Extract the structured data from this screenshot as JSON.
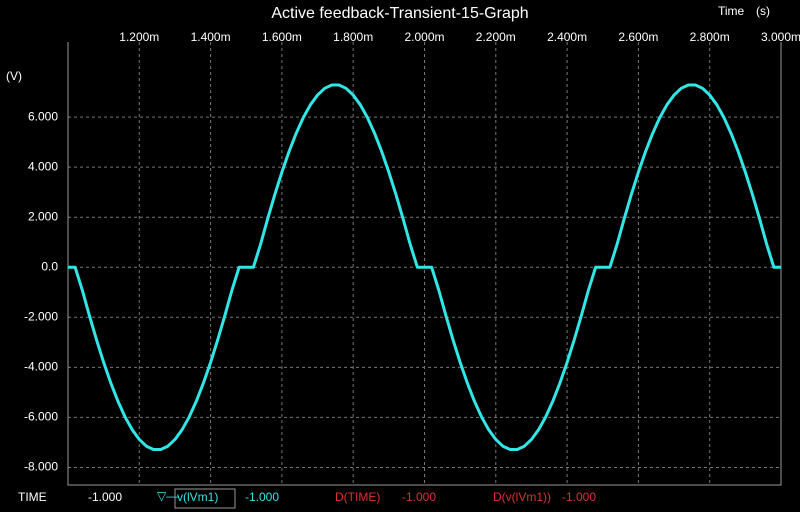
{
  "chart_data": {
    "type": "line",
    "title": "Active feedback-Transient-15-Graph",
    "xlabel": "Time",
    "xunit": "(s)",
    "ylabel": "(V)",
    "xlim": [
      0.001,
      0.003
    ],
    "ylim": [
      -8.7,
      9
    ],
    "xticks": [
      {
        "value": 0.0012,
        "label": "1.200m"
      },
      {
        "value": 0.0014,
        "label": "1.400m"
      },
      {
        "value": 0.0016,
        "label": "1.600m"
      },
      {
        "value": 0.0018,
        "label": "1.800m"
      },
      {
        "value": 0.002,
        "label": "2.000m"
      },
      {
        "value": 0.0022,
        "label": "2.200m"
      },
      {
        "value": 0.0024,
        "label": "2.400m"
      },
      {
        "value": 0.0026,
        "label": "2.600m"
      },
      {
        "value": 0.0028,
        "label": "2.800m"
      },
      {
        "value": 0.003,
        "label": "3.000m"
      }
    ],
    "yticks": [
      {
        "value": 6,
        "label": "6.000"
      },
      {
        "value": 4,
        "label": "4.000"
      },
      {
        "value": 2,
        "label": "2.000"
      },
      {
        "value": 0,
        "label": "0.0"
      },
      {
        "value": -2,
        "label": "-2.000"
      },
      {
        "value": -4,
        "label": "-4.000"
      },
      {
        "value": -6,
        "label": "-6.000"
      },
      {
        "value": -8,
        "label": "-8.000"
      }
    ],
    "grid": true,
    "x": [
      0.001,
      0.00102,
      0.00104,
      0.00106,
      0.00108,
      0.0011,
      0.00112,
      0.00114,
      0.00116,
      0.00118,
      0.0012,
      0.00122,
      0.00124,
      0.00126,
      0.00128,
      0.0013,
      0.00132,
      0.00134,
      0.00136,
      0.00138,
      0.0014,
      0.00142,
      0.00144,
      0.00146,
      0.00148,
      0.0015,
      0.00152,
      0.00154,
      0.00156,
      0.00158,
      0.0016,
      0.00162,
      0.00164,
      0.00166,
      0.00168,
      0.0017,
      0.00172,
      0.00174,
      0.00176,
      0.00178,
      0.0018,
      0.00182,
      0.00184,
      0.00186,
      0.00188,
      0.0019,
      0.00192,
      0.00194,
      0.00196,
      0.00198,
      0.002,
      0.00202,
      0.00204,
      0.00206,
      0.00208,
      0.0021,
      0.00212,
      0.00214,
      0.00216,
      0.00218,
      0.0022,
      0.00222,
      0.00224,
      0.00226,
      0.00228,
      0.0023,
      0.00232,
      0.00234,
      0.00236,
      0.00238,
      0.0024,
      0.00242,
      0.00244,
      0.00246,
      0.00248,
      0.0025,
      0.00252,
      0.00254,
      0.00256,
      0.00258,
      0.0026,
      0.00262,
      0.00264,
      0.00266,
      0.00268,
      0.0027,
      0.00272,
      0.00274,
      0.00276,
      0.00278,
      0.0028,
      0.00282,
      0.00284,
      0.00286,
      0.00288,
      0.0029,
      0.00292,
      0.00294,
      0.00296,
      0.00298,
      0.003
    ],
    "series": [
      {
        "name": "v(lVm1)",
        "color": "#33e6e6",
        "values": [
          0,
          0,
          -0.91,
          -1.93,
          -2.9,
          -3.8,
          -4.62,
          -5.35,
          -5.98,
          -6.49,
          -6.88,
          -7.15,
          -7.28,
          -7.28,
          -7.15,
          -6.88,
          -6.49,
          -5.98,
          -5.35,
          -4.62,
          -3.8,
          -2.9,
          -1.93,
          -0.91,
          0,
          0,
          0,
          0.91,
          1.93,
          2.9,
          3.8,
          4.62,
          5.35,
          5.98,
          6.49,
          6.88,
          7.15,
          7.28,
          7.28,
          7.15,
          6.88,
          6.49,
          5.98,
          5.35,
          4.62,
          3.8,
          2.9,
          1.93,
          0.91,
          0,
          0,
          0,
          -0.91,
          -1.93,
          -2.9,
          -3.8,
          -4.62,
          -5.35,
          -5.98,
          -6.49,
          -6.88,
          -7.15,
          -7.28,
          -7.28,
          -7.15,
          -6.88,
          -6.49,
          -5.98,
          -5.35,
          -4.62,
          -3.8,
          -2.9,
          -1.93,
          -0.91,
          0,
          0,
          0,
          0.91,
          1.93,
          2.9,
          3.8,
          4.62,
          5.35,
          5.98,
          6.49,
          6.88,
          7.15,
          7.28,
          7.28,
          7.15,
          6.88,
          6.49,
          5.98,
          5.35,
          4.62,
          3.8,
          2.9,
          1.93,
          0.91,
          0,
          0
        ]
      }
    ],
    "cursor": [
      {
        "label": "TIME",
        "value": "-1.000"
      },
      {
        "label": "D(TIME)",
        "value": "-1.000"
      },
      {
        "label": "D(v(lVm1))",
        "value": "-1.000"
      }
    ],
    "cursor_series_value": "-1.000"
  }
}
